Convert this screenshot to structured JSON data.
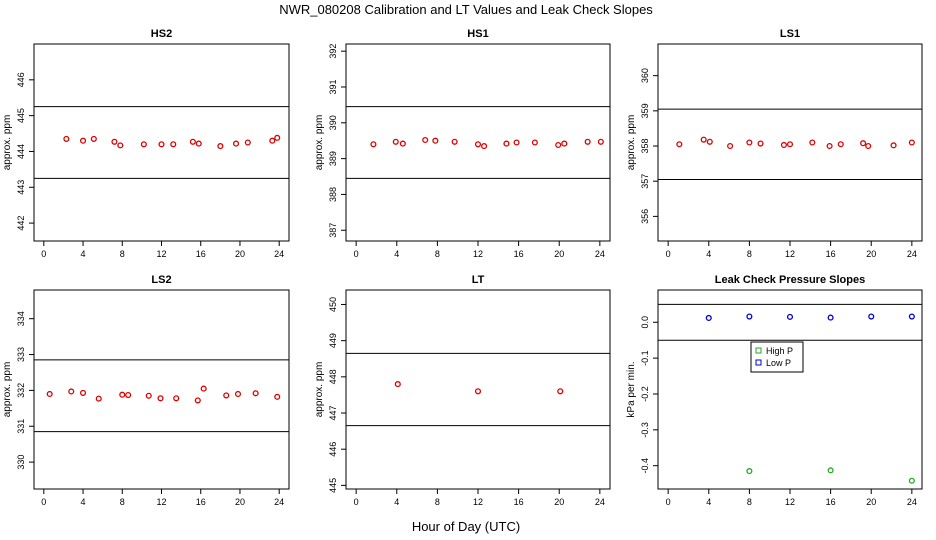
{
  "figure": {
    "title": "NWR_080208  Calibration and LT Values and Leak Check Slopes",
    "xlabel": "Hour of Day (UTC)"
  },
  "chart_data": [
    {
      "type": "scatter",
      "title": "HS2",
      "ylabel": "approx. ppm",
      "xlim": [
        -1,
        25
      ],
      "ylim": [
        441.5,
        447
      ],
      "xticks": [
        "0",
        "4",
        "8",
        "12",
        "16",
        "20",
        "24"
      ],
      "yticks": [
        "442",
        "443",
        "444",
        "445",
        "446"
      ],
      "hlines": [
        445.25,
        443.25
      ],
      "series": [
        {
          "color": "#dd0000",
          "x": [
            2.3,
            4.0,
            5.1,
            7.2,
            7.8,
            10.2,
            12.0,
            13.2,
            15.2,
            15.8,
            18.0,
            19.6,
            20.8,
            23.3,
            23.8
          ],
          "y": [
            444.35,
            444.3,
            444.35,
            444.27,
            444.17,
            444.2,
            444.2,
            444.2,
            444.27,
            444.22,
            444.15,
            444.22,
            444.25,
            444.3,
            444.38
          ]
        }
      ]
    },
    {
      "type": "scatter",
      "title": "HS1",
      "ylabel": "approx. ppm",
      "xlim": [
        -1,
        25
      ],
      "ylim": [
        386.7,
        392.2
      ],
      "xticks": [
        "0",
        "4",
        "8",
        "12",
        "16",
        "20",
        "24"
      ],
      "yticks": [
        "387",
        "388",
        "389",
        "390",
        "391",
        "392"
      ],
      "hlines": [
        390.45,
        388.45
      ],
      "series": [
        {
          "color": "#dd0000",
          "x": [
            1.7,
            3.9,
            4.6,
            6.8,
            7.8,
            9.7,
            12.0,
            12.6,
            14.8,
            15.8,
            17.6,
            19.9,
            20.5,
            22.8,
            24.1
          ],
          "y": [
            389.4,
            389.47,
            389.42,
            389.52,
            389.5,
            389.47,
            389.4,
            389.35,
            389.42,
            389.45,
            389.45,
            389.38,
            389.42,
            389.47,
            389.47
          ]
        }
      ]
    },
    {
      "type": "scatter",
      "title": "LS1",
      "ylabel": "approx. ppm",
      "xlim": [
        -1,
        25
      ],
      "ylim": [
        355.3,
        360.9
      ],
      "xticks": [
        "0",
        "4",
        "8",
        "12",
        "16",
        "20",
        "24"
      ],
      "yticks": [
        "356",
        "357",
        "358",
        "359",
        "360"
      ],
      "hlines": [
        359.05,
        357.05
      ],
      "series": [
        {
          "color": "#dd0000",
          "x": [
            1.1,
            3.5,
            4.1,
            6.1,
            8.0,
            9.1,
            11.4,
            12.0,
            14.2,
            15.9,
            17.0,
            19.2,
            19.7,
            22.2,
            24.0
          ],
          "y": [
            358.05,
            358.18,
            358.12,
            358.0,
            358.1,
            358.07,
            358.03,
            358.05,
            358.1,
            358.0,
            358.05,
            358.08,
            358.0,
            358.02,
            358.1
          ]
        }
      ]
    },
    {
      "type": "scatter",
      "title": "LS2",
      "ylabel": "approx. ppm",
      "xlim": [
        -1,
        25
      ],
      "ylim": [
        329.25,
        334.8
      ],
      "xticks": [
        "0",
        "4",
        "8",
        "12",
        "16",
        "20",
        "24"
      ],
      "yticks": [
        "330",
        "331",
        "332",
        "333",
        "334"
      ],
      "hlines": [
        332.85,
        330.85
      ],
      "series": [
        {
          "color": "#dd0000",
          "x": [
            0.6,
            2.8,
            4.0,
            5.6,
            8.0,
            8.6,
            10.7,
            11.9,
            13.5,
            15.7,
            16.3,
            18.6,
            19.8,
            21.6,
            23.8
          ],
          "y": [
            331.9,
            331.97,
            331.93,
            331.77,
            331.88,
            331.87,
            331.85,
            331.78,
            331.78,
            331.72,
            332.05,
            331.86,
            331.9,
            331.92,
            331.82
          ]
        }
      ]
    },
    {
      "type": "scatter",
      "title": "LT",
      "ylabel": "approx. ppm",
      "xlim": [
        -1,
        25
      ],
      "ylim": [
        444.9,
        450.4
      ],
      "xticks": [
        "0",
        "4",
        "8",
        "12",
        "16",
        "20",
        "24"
      ],
      "yticks": [
        "445",
        "446",
        "447",
        "448",
        "449",
        "450"
      ],
      "hlines": [
        448.65,
        446.65
      ],
      "series": [
        {
          "color": "#dd0000",
          "x": [
            4.1,
            12.0,
            20.1
          ],
          "y": [
            447.8,
            447.6,
            447.6
          ]
        }
      ]
    },
    {
      "type": "scatter",
      "title": "Leak Check Pressure Slopes",
      "ylabel": "kPa per min.",
      "xlim": [
        -1,
        25
      ],
      "ylim": [
        -0.465,
        0.09
      ],
      "xticks": [
        "0",
        "4",
        "8",
        "12",
        "16",
        "20",
        "24"
      ],
      "yticks": [
        "0.0",
        "-0.1",
        "-0.2",
        "-0.3",
        "-0.4"
      ],
      "hlines": [
        0.05,
        -0.05
      ],
      "legend": "center",
      "series": [
        {
          "name": "High P",
          "color": "#22aa22",
          "x": [
            8.0,
            16.0,
            24.0
          ],
          "y": [
            -0.415,
            -0.413,
            -0.442
          ]
        },
        {
          "name": "Low P",
          "color": "#0000cc",
          "x": [
            4.0,
            8.0,
            12.0,
            16.0,
            20.0,
            24.0
          ],
          "y": [
            0.012,
            0.016,
            0.015,
            0.013,
            0.016,
            0.016
          ]
        }
      ]
    }
  ]
}
